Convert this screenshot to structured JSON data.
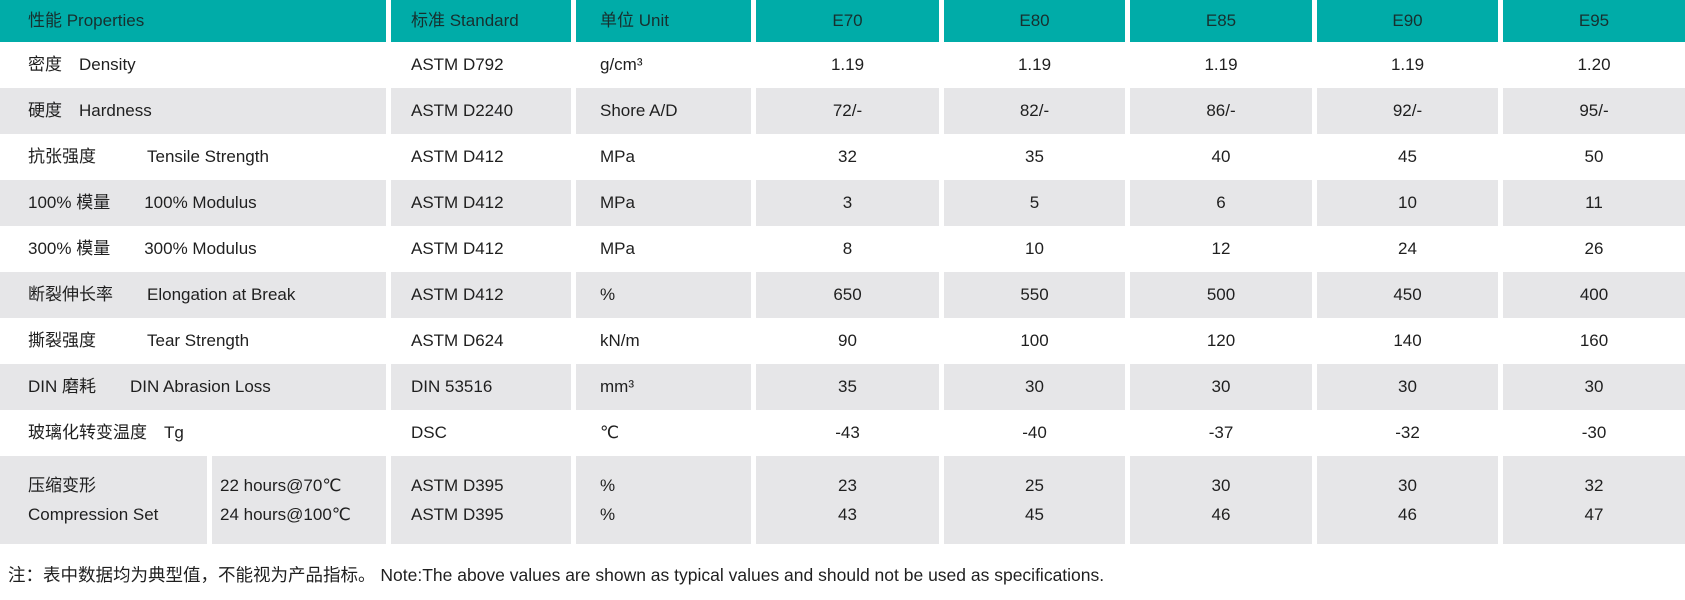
{
  "header": {
    "properties": "性能 Properties",
    "standard": "标准 Standard",
    "unit": "单位 Unit",
    "grades": [
      "E70",
      "E80",
      "E85",
      "E90",
      "E95"
    ]
  },
  "rows": [
    {
      "property": "密度　Density",
      "standard": "ASTM D792",
      "unit": "g/cm³",
      "values": [
        "1.19",
        "1.19",
        "1.19",
        "1.19",
        "1.20"
      ]
    },
    {
      "property": "硬度　Hardness",
      "standard": "ASTM D2240",
      "unit": "Shore A/D",
      "values": [
        "72/-",
        "82/-",
        "86/-",
        "92/-",
        "95/-"
      ]
    },
    {
      "property": "抗张强度　　　Tensile Strength",
      "standard": "ASTM D412",
      "unit": "MPa",
      "values": [
        "32",
        "35",
        "40",
        "45",
        "50"
      ]
    },
    {
      "property": "100% 模量　　100% Modulus",
      "standard": "ASTM D412",
      "unit": "MPa",
      "values": [
        "3",
        "5",
        "6",
        "10",
        "11"
      ]
    },
    {
      "property": "300% 模量　　300% Modulus",
      "standard": "ASTM D412",
      "unit": "MPa",
      "values": [
        "8",
        "10",
        "12",
        "24",
        "26"
      ]
    },
    {
      "property": "断裂伸长率　　Elongation at Break",
      "standard": "ASTM D412",
      "unit": "%",
      "values": [
        "650",
        "550",
        "500",
        "450",
        "400"
      ]
    },
    {
      "property": "撕裂强度　　　Tear Strength",
      "standard": "ASTM D624",
      "unit": "kN/m",
      "values": [
        "90",
        "100",
        "120",
        "140",
        "160"
      ]
    },
    {
      "property": "DIN 磨耗　　DIN Abrasion Loss",
      "standard": "DIN 53516",
      "unit": "mm³",
      "values": [
        "35",
        "30",
        "30",
        "30",
        "30"
      ]
    },
    {
      "property": "玻璃化转变温度　Tg",
      "standard": "DSC",
      "unit": "℃",
      "values": [
        "-43",
        "-40",
        "-37",
        "-32",
        "-30"
      ]
    }
  ],
  "compression_row": {
    "property_cn": "压缩变形",
    "property_en": "Compression Set",
    "conditions": [
      "22 hours@70℃",
      "24 hours@100℃"
    ],
    "standards": [
      "ASTM D395",
      "ASTM D395"
    ],
    "units": [
      "%",
      "%"
    ],
    "values": [
      [
        "23",
        "43"
      ],
      [
        "25",
        "45"
      ],
      [
        "30",
        "46"
      ],
      [
        "30",
        "46"
      ],
      [
        "32",
        "47"
      ]
    ]
  },
  "footnote": "注：表中数据均为典型值，不能视为产品指标。 Note:The above values are shown as typical values and should not be used as specifications.",
  "colors": {
    "header_teal": "#00ACA8",
    "row_gray": "#E6E6E8",
    "text": "#1F1F1F"
  }
}
